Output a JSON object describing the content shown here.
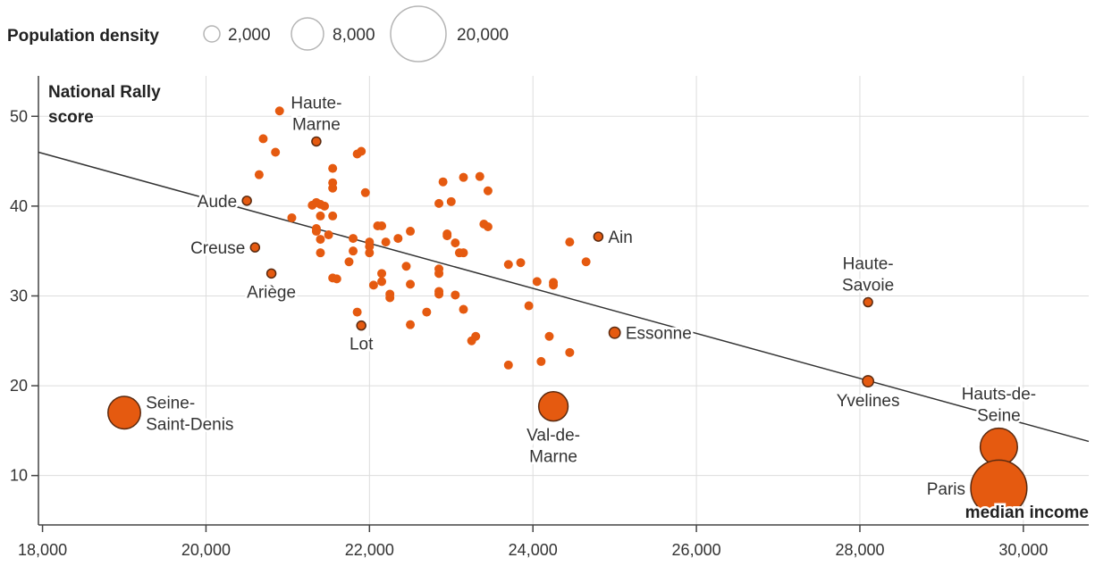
{
  "chart_data": {
    "type": "scatter",
    "title": "",
    "xlabel": "median income",
    "ylabel": "National Rally score",
    "xlim": [
      17950,
      30800
    ],
    "ylim": [
      4.5,
      54.5
    ],
    "x_ticks": [
      18000,
      20000,
      22000,
      24000,
      26000,
      28000,
      30000
    ],
    "y_ticks": [
      10,
      20,
      30,
      40,
      50
    ],
    "x_tick_labels": [
      "18,000",
      "20,000",
      "22,000",
      "24,000",
      "26,000",
      "28,000",
      "30,000"
    ],
    "y_tick_labels": [
      "10",
      "20",
      "30",
      "40",
      "50"
    ],
    "grid": "vertical",
    "colors": {
      "point": "#e55a10",
      "labeled_stroke": "#5a2a10",
      "trend": "#333333",
      "grid": "#dddddd"
    },
    "trendline": {
      "from": [
        17950,
        46.0
      ],
      "to": [
        30800,
        13.8
      ]
    },
    "size_legend": {
      "title": "Population density",
      "position": "top-left",
      "entries": [
        {
          "label": "2,000",
          "value": 2000
        },
        {
          "label": "8,000",
          "value": 8000
        },
        {
          "label": "20,000",
          "value": 20000
        }
      ]
    },
    "labeled_points": [
      {
        "name": "Haute-Marne",
        "lines": [
          "Haute-",
          "Marne"
        ],
        "x": 21350,
        "y": 47.2,
        "density": 300,
        "label_pos": "above"
      },
      {
        "name": "Aude",
        "lines": [
          "Aude"
        ],
        "x": 20500,
        "y": 40.6,
        "density": 300,
        "label_pos": "left"
      },
      {
        "name": "Creuse",
        "lines": [
          "Creuse"
        ],
        "x": 20600,
        "y": 35.4,
        "density": 300,
        "label_pos": "left"
      },
      {
        "name": "Ariège",
        "lines": [
          "Ariège"
        ],
        "x": 20800,
        "y": 32.5,
        "density": 300,
        "label_pos": "below"
      },
      {
        "name": "Lot",
        "lines": [
          "Lot"
        ],
        "x": 21900,
        "y": 26.7,
        "density": 300,
        "label_pos": "below"
      },
      {
        "name": "Ain",
        "lines": [
          "Ain"
        ],
        "x": 24800,
        "y": 36.6,
        "density": 300,
        "label_pos": "right"
      },
      {
        "name": "Essonne",
        "lines": [
          "Essonne"
        ],
        "x": 25000,
        "y": 25.9,
        "density": 800,
        "label_pos": "right"
      },
      {
        "name": "Haute-Savoie",
        "lines": [
          "Haute-",
          "Savoie"
        ],
        "x": 28100,
        "y": 29.3,
        "density": 300,
        "label_pos": "above"
      },
      {
        "name": "Yvelines",
        "lines": [
          "Yvelines"
        ],
        "x": 28100,
        "y": 20.5,
        "density": 800,
        "label_pos": "below"
      },
      {
        "name": "Seine-Saint-Denis",
        "lines": [
          "Seine-",
          "Saint-Denis"
        ],
        "x": 19000,
        "y": 17.0,
        "density": 6900,
        "label_pos": "right"
      },
      {
        "name": "Val-de-Marne",
        "lines": [
          "Val-de-",
          "Marne"
        ],
        "x": 24250,
        "y": 17.7,
        "density": 5600,
        "label_pos": "below"
      },
      {
        "name": "Hauts-de-Seine",
        "lines": [
          "Hauts-de-",
          "Seine"
        ],
        "x": 29700,
        "y": 13.2,
        "density": 9000,
        "label_pos": "above"
      },
      {
        "name": "Paris",
        "lines": [
          "Paris"
        ],
        "x": 29700,
        "y": 8.6,
        "density": 20500,
        "label_pos": "left"
      }
    ],
    "points": [
      {
        "x": 20900,
        "y": 50.6
      },
      {
        "x": 20700,
        "y": 47.5
      },
      {
        "x": 20850,
        "y": 46.0
      },
      {
        "x": 21850,
        "y": 45.8
      },
      {
        "x": 21900,
        "y": 46.1
      },
      {
        "x": 21550,
        "y": 44.2
      },
      {
        "x": 20650,
        "y": 43.5
      },
      {
        "x": 21550,
        "y": 42.6
      },
      {
        "x": 21550,
        "y": 42.0
      },
      {
        "x": 21950,
        "y": 41.5
      },
      {
        "x": 21300,
        "y": 40.1
      },
      {
        "x": 21350,
        "y": 40.4
      },
      {
        "x": 21400,
        "y": 40.2
      },
      {
        "x": 21450,
        "y": 40.0
      },
      {
        "x": 21050,
        "y": 38.7
      },
      {
        "x": 21400,
        "y": 38.9
      },
      {
        "x": 21550,
        "y": 38.9
      },
      {
        "x": 21350,
        "y": 37.5
      },
      {
        "x": 21350,
        "y": 37.2
      },
      {
        "x": 21500,
        "y": 36.8
      },
      {
        "x": 21400,
        "y": 36.3
      },
      {
        "x": 21400,
        "y": 34.8
      },
      {
        "x": 21550,
        "y": 32.0
      },
      {
        "x": 21600,
        "y": 31.9
      },
      {
        "x": 21750,
        "y": 33.8
      },
      {
        "x": 21800,
        "y": 35.0
      },
      {
        "x": 21800,
        "y": 36.4
      },
      {
        "x": 21850,
        "y": 28.2
      },
      {
        "x": 22000,
        "y": 36.0
      },
      {
        "x": 22000,
        "y": 35.5
      },
      {
        "x": 22000,
        "y": 34.8
      },
      {
        "x": 22050,
        "y": 31.2
      },
      {
        "x": 22100,
        "y": 37.8
      },
      {
        "x": 22150,
        "y": 37.8
      },
      {
        "x": 22150,
        "y": 32.5
      },
      {
        "x": 22150,
        "y": 31.6
      },
      {
        "x": 22200,
        "y": 36.0
      },
      {
        "x": 22250,
        "y": 30.2
      },
      {
        "x": 22250,
        "y": 29.8
      },
      {
        "x": 22350,
        "y": 36.4
      },
      {
        "x": 22450,
        "y": 33.3
      },
      {
        "x": 22500,
        "y": 37.2
      },
      {
        "x": 22500,
        "y": 31.3
      },
      {
        "x": 22500,
        "y": 26.8
      },
      {
        "x": 22700,
        "y": 28.2
      },
      {
        "x": 22850,
        "y": 40.3
      },
      {
        "x": 22850,
        "y": 33.0
      },
      {
        "x": 22850,
        "y": 32.5
      },
      {
        "x": 22850,
        "y": 30.5
      },
      {
        "x": 22850,
        "y": 30.2
      },
      {
        "x": 22900,
        "y": 42.7
      },
      {
        "x": 22950,
        "y": 36.9
      },
      {
        "x": 22950,
        "y": 36.7
      },
      {
        "x": 23000,
        "y": 40.5
      },
      {
        "x": 23050,
        "y": 35.9
      },
      {
        "x": 23050,
        "y": 30.1
      },
      {
        "x": 23100,
        "y": 34.8
      },
      {
        "x": 23150,
        "y": 43.2
      },
      {
        "x": 23150,
        "y": 34.8
      },
      {
        "x": 23150,
        "y": 28.5
      },
      {
        "x": 23250,
        "y": 25.0
      },
      {
        "x": 23300,
        "y": 25.5
      },
      {
        "x": 23350,
        "y": 43.3
      },
      {
        "x": 23400,
        "y": 38.0
      },
      {
        "x": 23450,
        "y": 41.7
      },
      {
        "x": 23450,
        "y": 37.7
      },
      {
        "x": 23700,
        "y": 22.3
      },
      {
        "x": 23700,
        "y": 33.5
      },
      {
        "x": 23850,
        "y": 33.7
      },
      {
        "x": 23950,
        "y": 28.9
      },
      {
        "x": 24050,
        "y": 31.6
      },
      {
        "x": 24100,
        "y": 22.7
      },
      {
        "x": 24200,
        "y": 25.5
      },
      {
        "x": 24250,
        "y": 31.5
      },
      {
        "x": 24250,
        "y": 31.2
      },
      {
        "x": 24450,
        "y": 36.0
      },
      {
        "x": 24450,
        "y": 23.7
      },
      {
        "x": 24650,
        "y": 33.8
      }
    ]
  }
}
